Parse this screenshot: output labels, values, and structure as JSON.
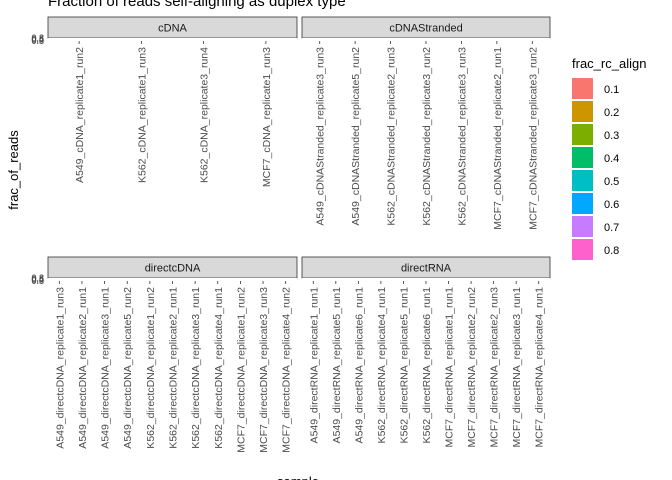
{
  "chart_data": {
    "type": "bar",
    "title": "Fraction of reads self-aligning as duplex type",
    "xlabel": "sample",
    "ylabel": "frac_of_reads",
    "y_tick_labels": [
      "0.0",
      "0.2",
      "0.4",
      "0.6",
      "0.8"
    ],
    "legend": {
      "title": "frac_rc_align",
      "placement": "right",
      "entries": [
        {
          "label": "0.1",
          "color": "#F8766D"
        },
        {
          "label": "0.2",
          "color": "#CD9600"
        },
        {
          "label": "0.3",
          "color": "#7CAE00"
        },
        {
          "label": "0.4",
          "color": "#00BE67"
        },
        {
          "label": "0.5",
          "color": "#00BFC4"
        },
        {
          "label": "0.6",
          "color": "#00A9FF"
        },
        {
          "label": "0.7",
          "color": "#C77CFF"
        },
        {
          "label": "0.8",
          "color": "#FF61CC"
        }
      ]
    },
    "facets": [
      {
        "strip": "cDNA",
        "categories": [
          "A549_cDNA_replicate1_run2",
          "K562_cDNA_replicate1_run3",
          "K562_cDNA_replicate3_run4",
          "MCF7_cDNA_replicate1_run3"
        ]
      },
      {
        "strip": "cDNAStranded",
        "categories": [
          "A549_cDNAStranded_replicate3_run3",
          "A549_cDNAStranded_replicate5_run2",
          "K562_cDNAStranded_replicate2_run3",
          "K562_cDNAStranded_replicate3_run2",
          "K562_cDNAStranded_replicate3_run3",
          "MCF7_cDNAStranded_replicate2_run1",
          "MCF7_cDNAStranded_replicate3_run2"
        ]
      },
      {
        "strip": "directcDNA",
        "categories": [
          "A549_directcDNA_replicate1_run3",
          "A549_directcDNA_replicate2_run1",
          "A549_directcDNA_replicate3_run1",
          "A549_directcDNA_replicate5_run2",
          "K562_directcDNA_replicate1_run2",
          "K562_directcDNA_replicate2_run1",
          "K562_directcDNA_replicate3_run1",
          "K562_directcDNA_replicate4_run1",
          "MCF7_directcDNA_replicate1_run2",
          "MCF7_directcDNA_replicate3_run3",
          "MCF7_directcDNA_replicate4_run2"
        ]
      },
      {
        "strip": "directRNA",
        "categories": [
          "A549_directRNA_replicate1_run1",
          "A549_directRNA_replicate5_run1",
          "A549_directRNA_replicate6_run1",
          "K562_directRNA_replicate4_run1",
          "K562_directRNA_replicate5_run1",
          "K562_directRNA_replicate6_run1",
          "MCF7_directRNA_replicate1_run1",
          "MCF7_directRNA_replicate2_run2",
          "MCF7_directRNA_replicate2_run3",
          "MCF7_directRNA_replicate3_run1",
          "MCF7_directRNA_replicate4_run1"
        ]
      }
    ],
    "grid": false
  }
}
